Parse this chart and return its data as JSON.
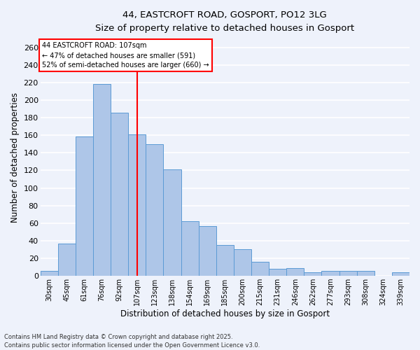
{
  "title_line1": "44, EASTCROFT ROAD, GOSPORT, PO12 3LG",
  "title_line2": "Size of property relative to detached houses in Gosport",
  "xlabel": "Distribution of detached houses by size in Gosport",
  "ylabel": "Number of detached properties",
  "categories": [
    "30sqm",
    "45sqm",
    "61sqm",
    "76sqm",
    "92sqm",
    "107sqm",
    "123sqm",
    "138sqm",
    "154sqm",
    "169sqm",
    "185sqm",
    "200sqm",
    "215sqm",
    "231sqm",
    "246sqm",
    "262sqm",
    "277sqm",
    "293sqm",
    "308sqm",
    "324sqm",
    "339sqm"
  ],
  "values": [
    6,
    37,
    159,
    218,
    186,
    161,
    150,
    121,
    62,
    57,
    35,
    30,
    16,
    8,
    9,
    4,
    6,
    6,
    6,
    0,
    4
  ],
  "bar_color": "#aec6e8",
  "bar_edge_color": "#5b9bd5",
  "bar_width": 1.0,
  "vline_x": 5,
  "vline_color": "red",
  "annotation_title": "44 EASTCROFT ROAD: 107sqm",
  "annotation_line2": "← 47% of detached houses are smaller (591)",
  "annotation_line3": "52% of semi-detached houses are larger (660) →",
  "annotation_box_color": "white",
  "annotation_box_edge_color": "red",
  "ylim": [
    0,
    270
  ],
  "yticks": [
    0,
    20,
    40,
    60,
    80,
    100,
    120,
    140,
    160,
    180,
    200,
    220,
    240,
    260
  ],
  "footnote_line1": "Contains HM Land Registry data © Crown copyright and database right 2025.",
  "footnote_line2": "Contains public sector information licensed under the Open Government Licence v3.0.",
  "background_color": "#eef2fb",
  "grid_color": "#ffffff",
  "fig_width": 6.0,
  "fig_height": 5.0
}
